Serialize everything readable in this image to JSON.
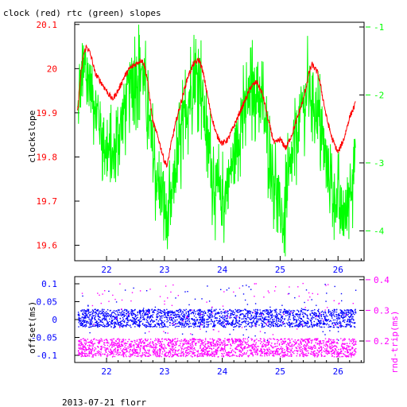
{
  "title": "clock (red) rtc (green) slopes",
  "footer": "2013-07-21 florr",
  "colors": {
    "red": "#ff0000",
    "green": "#00ff00",
    "blue": "#0000ff",
    "magenta": "#ff00ff",
    "axis": "#000000"
  },
  "chart_data": [
    {
      "type": "line",
      "title": "clock (red) rtc (green) slopes",
      "xlabel": "",
      "ylabel": "clockslope",
      "x_ticks": [
        "22",
        "23",
        "24",
        "25",
        "26"
      ],
      "xlim": [
        21.45,
        26.45
      ],
      "left_axis": {
        "label": "clockslope",
        "lim": [
          19.565,
          20.105
        ],
        "ticks": [
          "19.6",
          "19.7",
          "19.8",
          "19.9",
          "20",
          "20.1"
        ],
        "color": "#ff0000"
      },
      "right_axis": {
        "label": "",
        "lim": [
          -4.44,
          -0.93
        ],
        "ticks": [
          "-1",
          "-2",
          "-3",
          "-4"
        ],
        "color": "#00ff00"
      },
      "series": [
        {
          "name": "clock",
          "color": "#ff0000",
          "axis": "left",
          "x": [
            21.5,
            21.55,
            21.6,
            21.65,
            21.7,
            21.75,
            21.8,
            21.9,
            22.0,
            22.1,
            22.2,
            22.3,
            22.4,
            22.5,
            22.6,
            22.65,
            22.7,
            22.75,
            22.8,
            22.9,
            23.0,
            23.05,
            23.1,
            23.2,
            23.3,
            23.4,
            23.5,
            23.6,
            23.65,
            23.7,
            23.8,
            23.9,
            24.0,
            24.1,
            24.2,
            24.3,
            24.4,
            24.5,
            24.6,
            24.7,
            24.8,
            24.9,
            25.0,
            25.1,
            25.2,
            25.3,
            25.4,
            25.5,
            25.55,
            25.6,
            25.65,
            25.7,
            25.8,
            25.9,
            26.0,
            26.1,
            26.2,
            26.3
          ],
          "y": [
            19.9,
            19.98,
            20.03,
            20.05,
            20.04,
            20.02,
            19.99,
            19.97,
            19.95,
            19.93,
            19.95,
            19.98,
            20.0,
            20.01,
            20.02,
            20.01,
            19.98,
            19.93,
            19.88,
            19.84,
            19.79,
            19.78,
            19.82,
            19.88,
            19.93,
            19.98,
            20.01,
            20.02,
            20.0,
            19.97,
            19.9,
            19.85,
            19.83,
            19.84,
            19.87,
            19.9,
            19.93,
            19.96,
            19.97,
            19.94,
            19.88,
            19.83,
            19.84,
            19.82,
            19.85,
            19.89,
            19.93,
            19.99,
            20.01,
            20.0,
            19.99,
            19.96,
            19.89,
            19.84,
            19.81,
            19.84,
            19.89,
            19.92
          ]
        },
        {
          "name": "rtc",
          "color": "#00ff00",
          "axis": "right",
          "x": [
            21.5,
            21.55,
            21.6,
            21.65,
            21.7,
            21.8,
            21.9,
            22.0,
            22.1,
            22.2,
            22.3,
            22.4,
            22.5,
            22.6,
            22.65,
            22.7,
            22.8,
            22.9,
            23.0,
            23.05,
            23.1,
            23.2,
            23.3,
            23.4,
            23.5,
            23.6,
            23.65,
            23.7,
            23.8,
            23.9,
            24.0,
            24.1,
            24.2,
            24.3,
            24.4,
            24.5,
            24.6,
            24.7,
            24.8,
            24.9,
            25.0,
            25.05,
            25.1,
            25.2,
            25.3,
            25.4,
            25.5,
            25.6,
            25.7,
            25.8,
            25.9,
            26.0,
            26.1,
            26.15,
            26.2,
            26.3
          ],
          "y": [
            -2.3,
            -1.9,
            -1.7,
            -1.7,
            -1.8,
            -2.1,
            -2.5,
            -2.8,
            -3.0,
            -2.6,
            -2.2,
            -1.9,
            -1.7,
            -1.6,
            -1.8,
            -2.2,
            -2.9,
            -3.4,
            -3.6,
            -3.9,
            -3.7,
            -3.1,
            -2.6,
            -2.1,
            -1.8,
            -1.7,
            -2.0,
            -2.4,
            -3.0,
            -3.4,
            -3.6,
            -3.3,
            -2.9,
            -2.5,
            -2.2,
            -2.0,
            -1.9,
            -2.2,
            -2.8,
            -3.2,
            -3.7,
            -3.9,
            -3.6,
            -3.0,
            -2.5,
            -2.1,
            -1.9,
            -2.1,
            -2.5,
            -3.0,
            -3.4,
            -3.6,
            -3.8,
            -3.7,
            -3.3,
            -3.0
          ]
        }
      ]
    },
    {
      "type": "scatter",
      "xlabel": "",
      "ylabel": "offset(ms)",
      "x_ticks": [
        "22",
        "23",
        "24",
        "25",
        "26"
      ],
      "xlim": [
        21.45,
        26.45
      ],
      "left_axis": {
        "label": "offset(ms)",
        "lim": [
          -0.12,
          0.12
        ],
        "ticks": [
          "0.1",
          "0.05",
          "0",
          "-0.05",
          "-0.1"
        ],
        "color": "#0000ff"
      },
      "right_axis": {
        "label": "rnd-trip(ms)",
        "lim": [
          0.13,
          0.41
        ],
        "ticks": [
          "0.4",
          "0.3",
          "0.2"
        ],
        "color": "#ff00ff"
      },
      "series": [
        {
          "name": "offset",
          "color": "#0000ff",
          "axis": "left",
          "center": 0.0,
          "band": [
            -0.02,
            0.03
          ],
          "outlier_range": [
            -0.06,
            0.1
          ]
        },
        {
          "name": "rnd-trip",
          "color": "#ff00ff",
          "axis": "right",
          "center": 0.18,
          "band": [
            0.15,
            0.21
          ],
          "outlier_range": [
            0.22,
            0.39
          ]
        }
      ]
    }
  ]
}
